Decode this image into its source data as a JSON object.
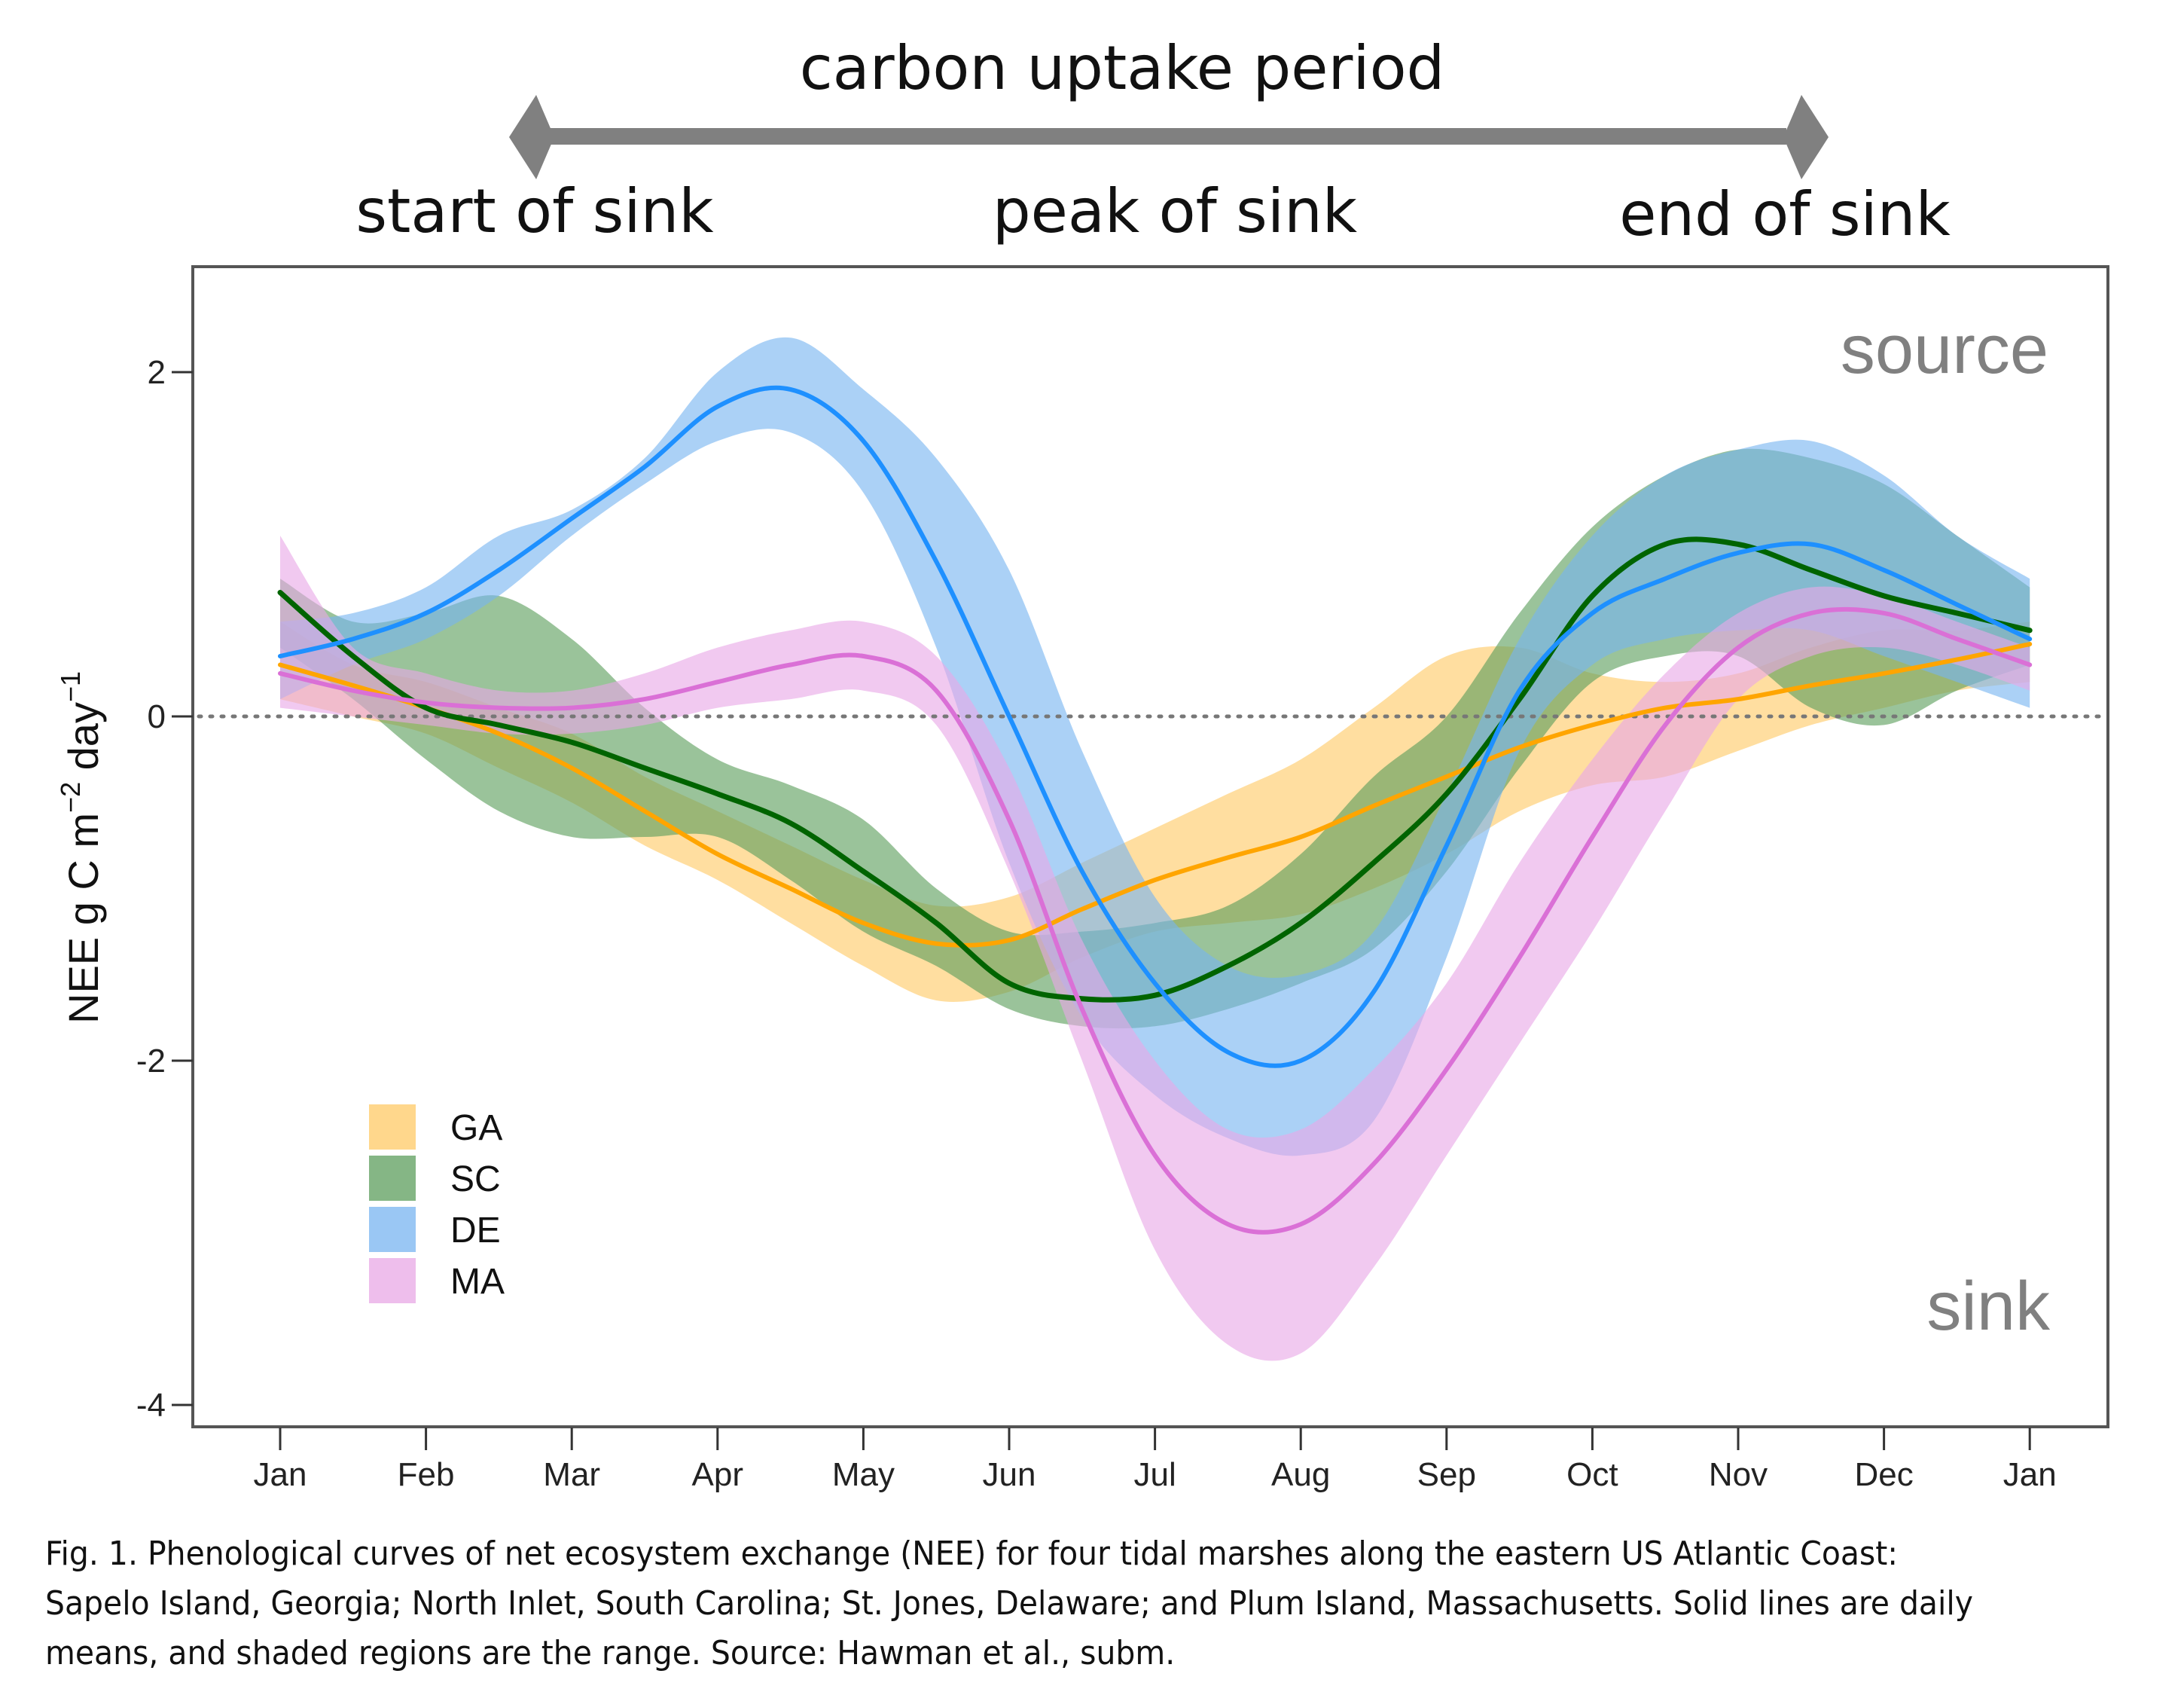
{
  "header": {
    "period_label": "carbon uptake period",
    "start_label": "start of sink",
    "peak_label": "peak of sink",
    "end_label": "end of sink",
    "arrow_color": "#808080"
  },
  "caption": "Fig. 1. Phenological curves of net ecosystem exchange (NEE) for four tidal marshes along the eastern US Atlantic Coast: Sapelo Island, Georgia; North Inlet, South Carolina; St. Jones, Delaware; and Plum Island, Massachusetts. Solid lines are daily means, and shaded regions are the range. Source: Hawman et al., subm.",
  "chart_data": {
    "type": "line",
    "title": "",
    "xlabel": "",
    "ylabel": "NEE g C m^-2 day^-1",
    "ylabel_parts": {
      "base": "NEE g C m",
      "exp1": "−2",
      "mid": " day",
      "exp2": "−1"
    },
    "x_ticks": [
      "Jan",
      "Feb",
      "Mar",
      "Apr",
      "May",
      "Jun",
      "Jul",
      "Aug",
      "Sep",
      "Oct",
      "Nov",
      "Dec",
      "Jan"
    ],
    "y_ticks": [
      2,
      0,
      -2,
      -4
    ],
    "y_tick_labels": [
      "2",
      "0",
      "-2",
      "-4"
    ],
    "xlim": [
      -0.6,
      12.5
    ],
    "ylim": [
      -4.1,
      2.6
    ],
    "reference_line": {
      "y": 0,
      "style": "dotted",
      "color": "#777777"
    },
    "annotations": {
      "top_right": "source",
      "bottom_right": "sink"
    },
    "legend": {
      "placement": "bottom-left",
      "entries": [
        "GA",
        "SC",
        "DE",
        "MA"
      ]
    },
    "x": [
      0,
      0.5,
      1,
      1.5,
      2,
      2.5,
      3,
      3.5,
      4,
      4.5,
      5,
      5.5,
      6,
      6.5,
      7,
      7.5,
      8,
      8.5,
      9,
      9.5,
      10,
      10.5,
      11,
      11.5,
      12
    ],
    "series": [
      {
        "name": "GA",
        "line_color": "#FFA500",
        "band_color": "#FFC966",
        "mean": [
          0.3,
          0.18,
          0.05,
          -0.1,
          -0.3,
          -0.55,
          -0.8,
          -1.0,
          -1.2,
          -1.32,
          -1.3,
          -1.12,
          -0.95,
          -0.82,
          -0.7,
          -0.52,
          -0.35,
          -0.18,
          -0.05,
          0.05,
          0.1,
          0.18,
          0.25,
          0.33,
          0.42
        ],
        "upper": [
          0.55,
          0.3,
          0.2,
          0.05,
          -0.1,
          -0.35,
          -0.55,
          -0.75,
          -0.95,
          -1.1,
          -1.05,
          -0.85,
          -0.65,
          -0.45,
          -0.25,
          0.05,
          0.35,
          0.4,
          0.25,
          0.2,
          0.25,
          0.4,
          0.5,
          0.5,
          0.55
        ],
        "lower": [
          0.1,
          0.0,
          -0.1,
          -0.3,
          -0.5,
          -0.75,
          -0.95,
          -1.2,
          -1.45,
          -1.65,
          -1.6,
          -1.4,
          -1.25,
          -1.2,
          -1.15,
          -1.0,
          -0.8,
          -0.55,
          -0.4,
          -0.35,
          -0.2,
          -0.05,
          0.05,
          0.15,
          0.2
        ]
      },
      {
        "name": "SC",
        "line_color": "#006400",
        "band_color": "#5C9E5C",
        "mean": [
          0.72,
          0.35,
          0.05,
          -0.05,
          -0.15,
          -0.3,
          -0.45,
          -0.62,
          -0.9,
          -1.2,
          -1.55,
          -1.64,
          -1.62,
          -1.45,
          -1.2,
          -0.85,
          -0.45,
          0.1,
          0.7,
          1.0,
          1.0,
          0.85,
          0.7,
          0.6,
          0.5
        ],
        "upper": [
          0.8,
          0.55,
          0.6,
          0.7,
          0.45,
          0.05,
          -0.25,
          -0.4,
          -0.6,
          -1.0,
          -1.25,
          -1.25,
          -1.2,
          -1.1,
          -0.8,
          -0.35,
          0.0,
          0.6,
          1.1,
          1.4,
          1.55,
          1.5,
          1.35,
          1.05,
          0.75
        ],
        "lower": [
          0.4,
          0.1,
          -0.25,
          -0.55,
          -0.7,
          -0.7,
          -0.7,
          -0.95,
          -1.25,
          -1.45,
          -1.7,
          -1.8,
          -1.8,
          -1.7,
          -1.55,
          -1.35,
          -0.9,
          -0.3,
          0.2,
          0.35,
          0.35,
          0.05,
          -0.05,
          0.15,
          0.3
        ]
      },
      {
        "name": "DE",
        "line_color": "#1E90FF",
        "band_color": "#78B4F0",
        "mean": [
          0.35,
          0.45,
          0.6,
          0.85,
          1.15,
          1.45,
          1.8,
          1.9,
          1.6,
          0.9,
          0.0,
          -0.9,
          -1.55,
          -1.95,
          -2.0,
          -1.6,
          -0.75,
          0.15,
          0.6,
          0.8,
          0.95,
          1.0,
          0.85,
          0.65,
          0.45
        ],
        "upper": [
          0.55,
          0.6,
          0.75,
          1.05,
          1.2,
          1.5,
          2.0,
          2.2,
          1.9,
          1.5,
          0.85,
          -0.2,
          -1.05,
          -1.45,
          -1.5,
          -1.25,
          -0.45,
          0.45,
          1.05,
          1.4,
          1.55,
          1.6,
          1.4,
          1.05,
          0.8
        ],
        "lower": [
          0.1,
          0.3,
          0.45,
          0.7,
          1.05,
          1.35,
          1.6,
          1.65,
          1.3,
          0.4,
          -0.85,
          -1.75,
          -2.2,
          -2.45,
          -2.55,
          -2.35,
          -1.4,
          -0.2,
          0.3,
          0.45,
          0.5,
          0.5,
          0.35,
          0.2,
          0.05
        ]
      },
      {
        "name": "MA",
        "line_color": "#DA70D6",
        "band_color": "#E8A8E6",
        "mean": [
          0.25,
          0.15,
          0.08,
          0.05,
          0.05,
          0.1,
          0.2,
          0.3,
          0.35,
          0.15,
          -0.6,
          -1.7,
          -2.55,
          -2.95,
          -2.95,
          -2.6,
          -2.05,
          -1.4,
          -0.7,
          -0.05,
          0.4,
          0.6,
          0.6,
          0.45,
          0.3
        ],
        "upper": [
          1.05,
          0.4,
          0.25,
          0.15,
          0.15,
          0.25,
          0.4,
          0.5,
          0.55,
          0.35,
          -0.3,
          -1.3,
          -2.0,
          -2.4,
          -2.4,
          -2.05,
          -1.55,
          -0.85,
          -0.25,
          0.25,
          0.6,
          0.75,
          0.7,
          0.55,
          0.4
        ],
        "lower": [
          0.05,
          0.0,
          -0.05,
          -0.1,
          -0.1,
          -0.05,
          0.05,
          0.1,
          0.15,
          -0.05,
          -0.9,
          -2.0,
          -3.1,
          -3.65,
          -3.7,
          -3.2,
          -2.55,
          -1.9,
          -1.25,
          -0.55,
          0.1,
          0.35,
          0.4,
          0.3,
          0.15
        ]
      }
    ]
  }
}
